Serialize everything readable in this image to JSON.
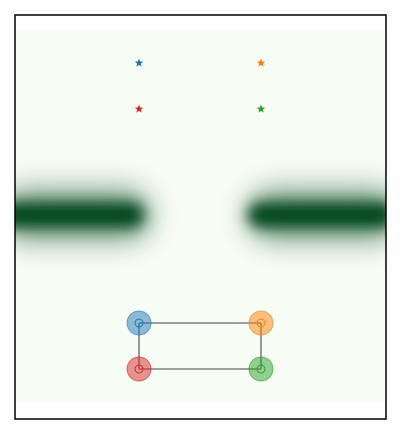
{
  "heatmap": {
    "colors": [
      "#f7fcf5",
      "#00441b"
    ]
  },
  "markers": [
    {
      "color": "#1f77b4"
    },
    {
      "color": "#ff7f0e"
    },
    {
      "color": "#d62728"
    },
    {
      "color": "#2ca02c"
    }
  ],
  "link_color": "#808080"
}
